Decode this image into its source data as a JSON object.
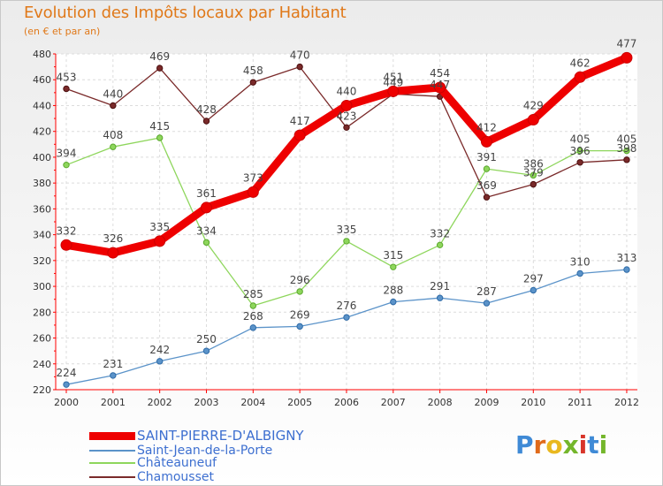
{
  "chart_data": {
    "type": "line",
    "title": "Evolution des Impôts locaux par Habitant",
    "subtitle": "(en € et par an)",
    "xlabel": "",
    "ylabel": "",
    "ylim": [
      220,
      480
    ],
    "yticks": [
      220,
      240,
      260,
      280,
      300,
      320,
      340,
      360,
      380,
      400,
      420,
      440,
      460,
      480
    ],
    "categories": [
      "2000",
      "2001",
      "2002",
      "2003",
      "2004",
      "2005",
      "2006",
      "2007",
      "2008",
      "2009",
      "2010",
      "2011",
      "2012"
    ],
    "grid": true,
    "series": [
      {
        "name": "SAINT-PIERRE-D'ALBIGNY",
        "color": "#ee0000",
        "values": [
          332,
          326,
          335,
          361,
          373,
          417,
          440,
          451,
          454,
          412,
          429,
          462,
          477
        ]
      },
      {
        "name": "Saint-Jean-de-la-Porte",
        "color": "#5b93c9",
        "values": [
          224,
          231,
          242,
          250,
          268,
          269,
          276,
          288,
          291,
          287,
          297,
          310,
          313
        ]
      },
      {
        "name": "Châteauneuf",
        "color": "#8ed65c",
        "values": [
          394,
          408,
          415,
          334,
          285,
          296,
          335,
          315,
          332,
          391,
          386,
          405,
          405
        ]
      },
      {
        "name": "Chamousset",
        "color": "#7a2a2a",
        "values": [
          453,
          440,
          469,
          428,
          458,
          470,
          423,
          449,
          447,
          369,
          379,
          396,
          398
        ]
      }
    ]
  },
  "brand": {
    "letters": [
      "P",
      "r",
      "o",
      "x",
      "i",
      "t",
      "i"
    ],
    "colors": [
      "#3f8ad6",
      "#e06a1a",
      "#e9b81f",
      "#74b62b",
      "#d8352a",
      "#3f8ad6",
      "#74b62b"
    ]
  }
}
